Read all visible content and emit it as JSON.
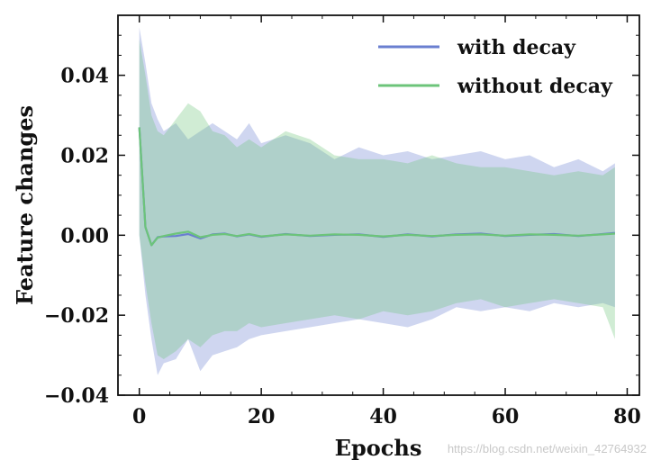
{
  "chart_data": {
    "type": "line",
    "title": "",
    "xlabel": "Epochs",
    "ylabel": "Feature changes",
    "xlim": [
      -3.5,
      82
    ],
    "ylim": [
      -0.04,
      0.055
    ],
    "xticks": [
      0,
      20,
      40,
      60,
      80
    ],
    "xtick_labels": [
      "0",
      "20",
      "40",
      "60",
      "80"
    ],
    "yticks": [
      -0.04,
      -0.02,
      0.0,
      0.02,
      0.04
    ],
    "ytick_labels": [
      "−0.04",
      "−0.02",
      "0.00",
      "0.02",
      "0.04"
    ],
    "legend_position": "top-right",
    "colors": {
      "with_decay": "#6a7fd0",
      "without_decay": "#6cc47a",
      "axis": "#111111"
    },
    "series": [
      {
        "name": "with decay",
        "color": "#6a7fd0",
        "mean": {
          "x": [
            0,
            1,
            2,
            3,
            4,
            6,
            8,
            10,
            12,
            14,
            16,
            18,
            20,
            24,
            28,
            32,
            36,
            40,
            44,
            48,
            52,
            56,
            60,
            64,
            68,
            72,
            76,
            78
          ],
          "y": [
            0.027,
            0.002,
            -0.0025,
            -0.0005,
            -0.0003,
            -0.0002,
            0.0003,
            -0.0008,
            0.0002,
            0.0004,
            -0.0003,
            0.0002,
            -0.0004,
            0.0003,
            -0.0002,
            0.0001,
            0.0002,
            -0.0004,
            0.0002,
            -0.0003,
            0.0002,
            0.0004,
            -0.0002,
            0.0001,
            0.0003,
            -0.0002,
            0.0003,
            0.0006
          ]
        },
        "band": {
          "x": [
            0,
            1,
            2,
            3,
            4,
            6,
            8,
            10,
            12,
            14,
            16,
            18,
            20,
            24,
            28,
            32,
            36,
            40,
            44,
            48,
            52,
            56,
            60,
            64,
            68,
            72,
            76,
            78
          ],
          "upper": [
            0.052,
            0.043,
            0.033,
            0.029,
            0.026,
            0.028,
            0.024,
            0.026,
            0.028,
            0.026,
            0.024,
            0.028,
            0.023,
            0.025,
            0.023,
            0.019,
            0.022,
            0.02,
            0.021,
            0.019,
            0.02,
            0.021,
            0.019,
            0.02,
            0.017,
            0.019,
            0.016,
            0.018
          ],
          "lower": [
            0.0,
            -0.015,
            -0.026,
            -0.035,
            -0.032,
            -0.031,
            -0.026,
            -0.034,
            -0.03,
            -0.029,
            -0.028,
            -0.026,
            -0.025,
            -0.024,
            -0.023,
            -0.022,
            -0.021,
            -0.022,
            -0.023,
            -0.021,
            -0.018,
            -0.019,
            -0.018,
            -0.019,
            -0.017,
            -0.018,
            -0.017,
            -0.018
          ]
        }
      },
      {
        "name": "without decay",
        "color": "#6cc47a",
        "mean": {
          "x": [
            0,
            1,
            2,
            3,
            4,
            6,
            8,
            10,
            12,
            14,
            16,
            18,
            20,
            24,
            28,
            32,
            36,
            40,
            44,
            48,
            52,
            56,
            60,
            64,
            68,
            72,
            76,
            78
          ],
          "y": [
            0.027,
            0.002,
            -0.0025,
            -0.0006,
            -0.0002,
            0.0004,
            0.0009,
            -0.0005,
            0.0001,
            0.0003,
            -0.0002,
            0.0003,
            -0.0003,
            0.0002,
            -0.0001,
            0.0002,
            0.0001,
            -0.0003,
            0.0001,
            -0.0002,
            0.0001,
            0.0002,
            -0.0001,
            0.0002,
            0.0001,
            -0.0001,
            0.0002,
            0.0004
          ]
        },
        "band": {
          "x": [
            0,
            1,
            2,
            3,
            4,
            6,
            8,
            10,
            12,
            14,
            16,
            18,
            20,
            24,
            28,
            32,
            36,
            40,
            44,
            48,
            52,
            56,
            60,
            64,
            68,
            72,
            76,
            78
          ],
          "upper": [
            0.049,
            0.04,
            0.03,
            0.026,
            0.025,
            0.029,
            0.033,
            0.031,
            0.026,
            0.025,
            0.022,
            0.024,
            0.022,
            0.026,
            0.024,
            0.02,
            0.019,
            0.019,
            0.018,
            0.02,
            0.018,
            0.017,
            0.017,
            0.016,
            0.015,
            0.016,
            0.015,
            0.017
          ],
          "lower": [
            0.0,
            -0.012,
            -0.022,
            -0.03,
            -0.031,
            -0.029,
            -0.026,
            -0.028,
            -0.025,
            -0.024,
            -0.024,
            -0.022,
            -0.023,
            -0.022,
            -0.021,
            -0.02,
            -0.021,
            -0.019,
            -0.02,
            -0.019,
            -0.017,
            -0.016,
            -0.018,
            -0.017,
            -0.016,
            -0.017,
            -0.018,
            -0.026
          ]
        }
      }
    ]
  },
  "watermark": "https://blog.csdn.net/weixin_42764932"
}
